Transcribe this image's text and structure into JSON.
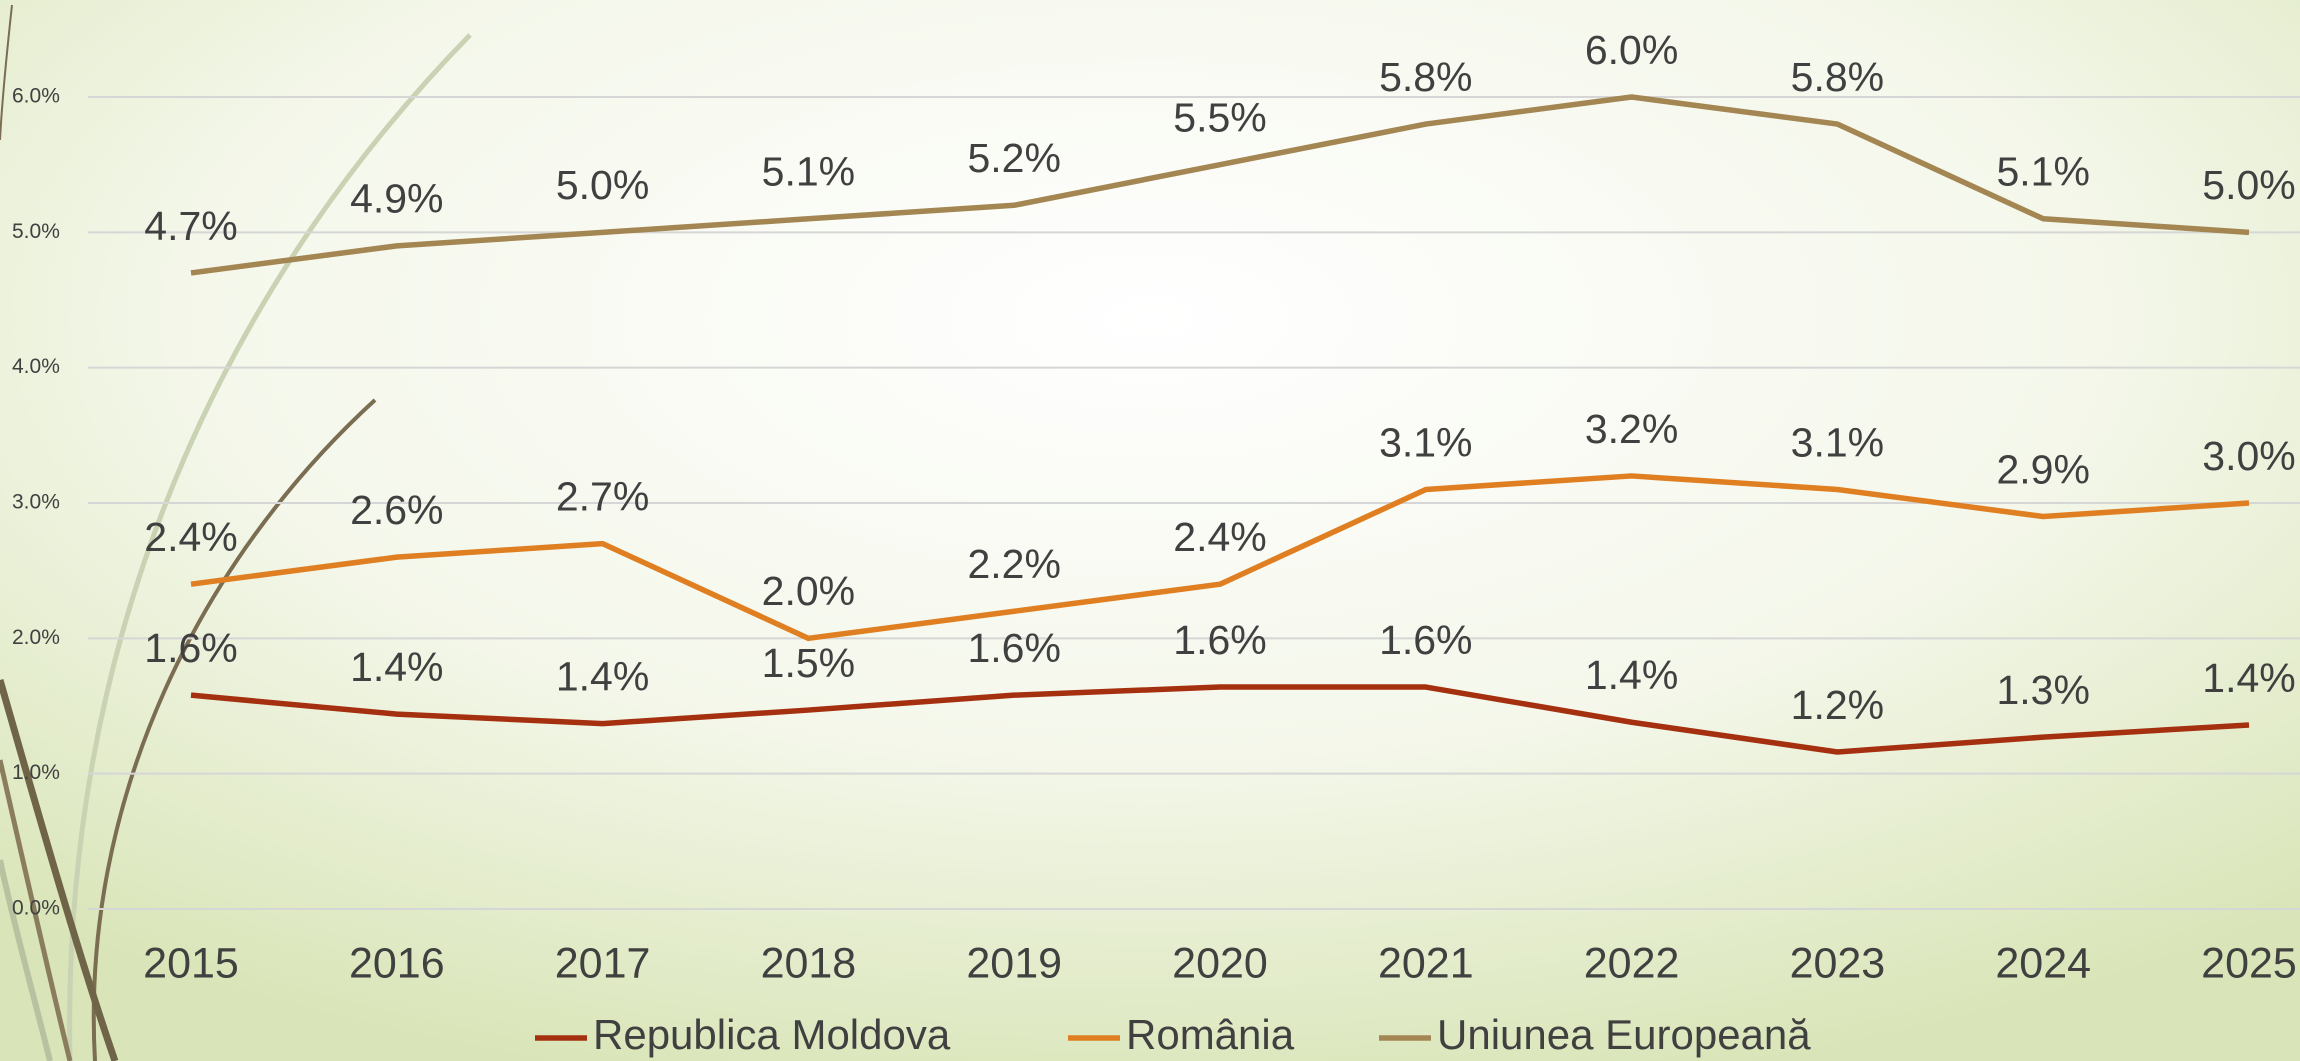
{
  "chart_data": {
    "type": "line",
    "categories": [
      "2015",
      "2016",
      "2017",
      "2018",
      "2019",
      "2020",
      "2021",
      "2022",
      "2023",
      "2024",
      "2025"
    ],
    "series": [
      {
        "name": "Republica Moldova",
        "color": "#a5300f",
        "values": [
          1.58,
          1.44,
          1.37,
          1.47,
          1.58,
          1.64,
          1.64,
          1.38,
          1.16,
          1.27,
          1.36
        ],
        "value_labels": [
          "1.6%",
          "1.4%",
          "1.4%",
          "1.5%",
          "1.6%",
          "1.6%",
          "1.6%",
          "1.4%",
          "1.2%",
          "1.3%",
          "1.4%"
        ]
      },
      {
        "name": "România",
        "color": "#df7f22",
        "values": [
          2.4,
          2.6,
          2.7,
          2.0,
          2.2,
          2.4,
          3.1,
          3.2,
          3.1,
          2.9,
          3.0
        ],
        "value_labels": [
          "2.4%",
          "2.6%",
          "2.7%",
          "2.0%",
          "2.2%",
          "2.4%",
          "3.1%",
          "3.2%",
          "3.1%",
          "2.9%",
          "3.0%"
        ]
      },
      {
        "name": "Uniunea Europeană",
        "color": "#a38652",
        "values": [
          4.7,
          4.9,
          5.0,
          5.1,
          5.2,
          5.5,
          5.8,
          6.0,
          5.8,
          5.1,
          5.0
        ],
        "value_labels": [
          "4.7%",
          "4.9%",
          "5.0%",
          "5.1%",
          "5.2%",
          "5.5%",
          "5.8%",
          "6.0%",
          "5.8%",
          "5.1%",
          "5.0%"
        ]
      }
    ],
    "ylim": [
      0,
      6
    ],
    "yticks": [
      {
        "value": 0,
        "label": "0.0%"
      },
      {
        "value": 1,
        "label": "1.0%"
      },
      {
        "value": 2,
        "label": "2.0%"
      },
      {
        "value": 3,
        "label": "3.0%"
      },
      {
        "value": 4,
        "label": "4.0%"
      },
      {
        "value": 5,
        "label": "5.0%"
      },
      {
        "value": 6,
        "label": "6.0%"
      }
    ],
    "grid": true,
    "legend": "bottom"
  }
}
